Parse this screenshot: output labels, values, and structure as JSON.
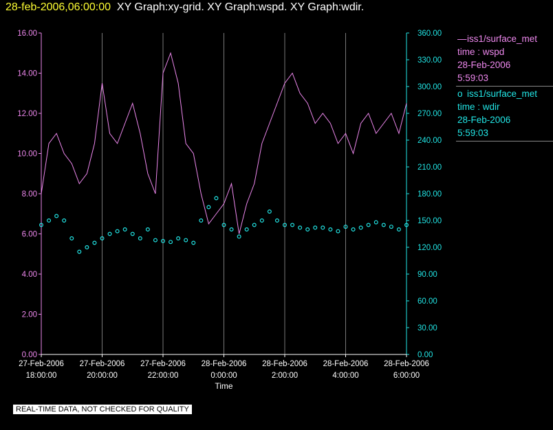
{
  "header": {
    "date": "28-feb-2006,06:00:00",
    "titles": "XY Graph:xy-grid.  XY Graph:wspd.  XY Graph:wdir."
  },
  "legend": [
    {
      "symbol": "—",
      "name": "iss1/surface_met",
      "var": "time : wspd",
      "date": "28-Feb-2006",
      "time": "5:59:03",
      "color": "#ee88ee"
    },
    {
      "symbol": "o",
      "name": "iss1/surface_met",
      "var": "time : wdir",
      "date": "28-Feb-2006",
      "time": "5:59:03",
      "color": "#22e6e6"
    }
  ],
  "disclaimer": "REAL-TIME DATA, NOT CHECKED FOR QUALITY",
  "chart_data": {
    "type": "line",
    "xlabel": "Time",
    "x_ticks": [
      [
        "27-Feb-2006",
        "18:00:00"
      ],
      [
        "27-Feb-2006",
        "20:00:00"
      ],
      [
        "27-Feb-2006",
        "22:00:00"
      ],
      [
        "28-Feb-2006",
        "0:00:00"
      ],
      [
        "28-Feb-2006",
        "2:00:00"
      ],
      [
        "28-Feb-2006",
        "4:00:00"
      ],
      [
        "28-Feb-2006",
        "6:00:00"
      ]
    ],
    "xlim_hours": [
      -6,
      6
    ],
    "y_left": {
      "ticks": [
        "0.00",
        "2.00",
        "4.00",
        "6.00",
        "8.00",
        "10.00",
        "12.00",
        "14.00",
        "16.00"
      ],
      "lim": [
        0,
        16
      ],
      "color": "#ee88ee"
    },
    "y_right": {
      "ticks": [
        "0.00",
        "30.00",
        "60.00",
        "90.00",
        "120.00",
        "150.00",
        "180.00",
        "210.00",
        "240.00",
        "270.00",
        "300.00",
        "330.00",
        "360.00"
      ],
      "lim": [
        0,
        360
      ],
      "color": "#22e6e6"
    },
    "grid": true,
    "series": [
      {
        "name": "iss1/surface_met time : wspd",
        "axis": "left",
        "style": "line",
        "color": "#ee88ee",
        "x": [
          -6,
          -5.75,
          -5.5,
          -5.25,
          -5,
          -4.75,
          -4.5,
          -4.25,
          -4,
          -3.75,
          -3.5,
          -3.25,
          -3,
          -2.75,
          -2.5,
          -2.25,
          -2,
          -1.75,
          -1.5,
          -1.25,
          -1,
          -0.75,
          -0.5,
          -0.25,
          0,
          0.25,
          0.5,
          0.75,
          1,
          1.25,
          1.5,
          1.75,
          2,
          2.25,
          2.5,
          2.75,
          3,
          3.25,
          3.5,
          3.75,
          4,
          4.25,
          4.5,
          4.75,
          5,
          5.25,
          5.5,
          5.75,
          6
        ],
        "y": [
          8.0,
          10.5,
          11.0,
          10.0,
          9.5,
          8.5,
          9.0,
          10.5,
          13.5,
          11.0,
          10.5,
          11.5,
          12.5,
          11.0,
          9.0,
          8.0,
          14.0,
          15.0,
          13.5,
          10.5,
          10.0,
          8.0,
          6.5,
          7.0,
          7.5,
          8.5,
          6.0,
          7.5,
          8.5,
          10.5,
          11.5,
          12.5,
          13.5,
          14.0,
          13.0,
          12.5,
          11.5,
          12.0,
          11.5,
          10.5,
          11.0,
          10.0,
          11.5,
          12.0,
          11.0,
          11.5,
          12.0,
          11.0,
          12.5
        ]
      },
      {
        "name": "iss1/surface_met time : wdir",
        "axis": "right",
        "style": "circle",
        "color": "#22e6e6",
        "x": [
          -6,
          -5.75,
          -5.5,
          -5.25,
          -5,
          -4.75,
          -4.5,
          -4.25,
          -4,
          -3.75,
          -3.5,
          -3.25,
          -3,
          -2.75,
          -2.5,
          -2.25,
          -2,
          -1.75,
          -1.5,
          -1.25,
          -1,
          -0.75,
          -0.5,
          -0.25,
          0,
          0.25,
          0.5,
          0.75,
          1,
          1.25,
          1.5,
          1.75,
          2,
          2.25,
          2.5,
          2.75,
          3,
          3.25,
          3.5,
          3.75,
          4,
          4.25,
          4.5,
          4.75,
          5,
          5.25,
          5.5,
          5.75,
          6
        ],
        "y": [
          145,
          150,
          155,
          150,
          130,
          115,
          120,
          125,
          130,
          135,
          138,
          140,
          135,
          130,
          140,
          128,
          127,
          126,
          130,
          128,
          125,
          150,
          165,
          175,
          145,
          140,
          132,
          140,
          145,
          150,
          160,
          150,
          145,
          145,
          142,
          140,
          142,
          142,
          140,
          138,
          143,
          140,
          142,
          145,
          148,
          145,
          143,
          140,
          145
        ]
      }
    ]
  }
}
